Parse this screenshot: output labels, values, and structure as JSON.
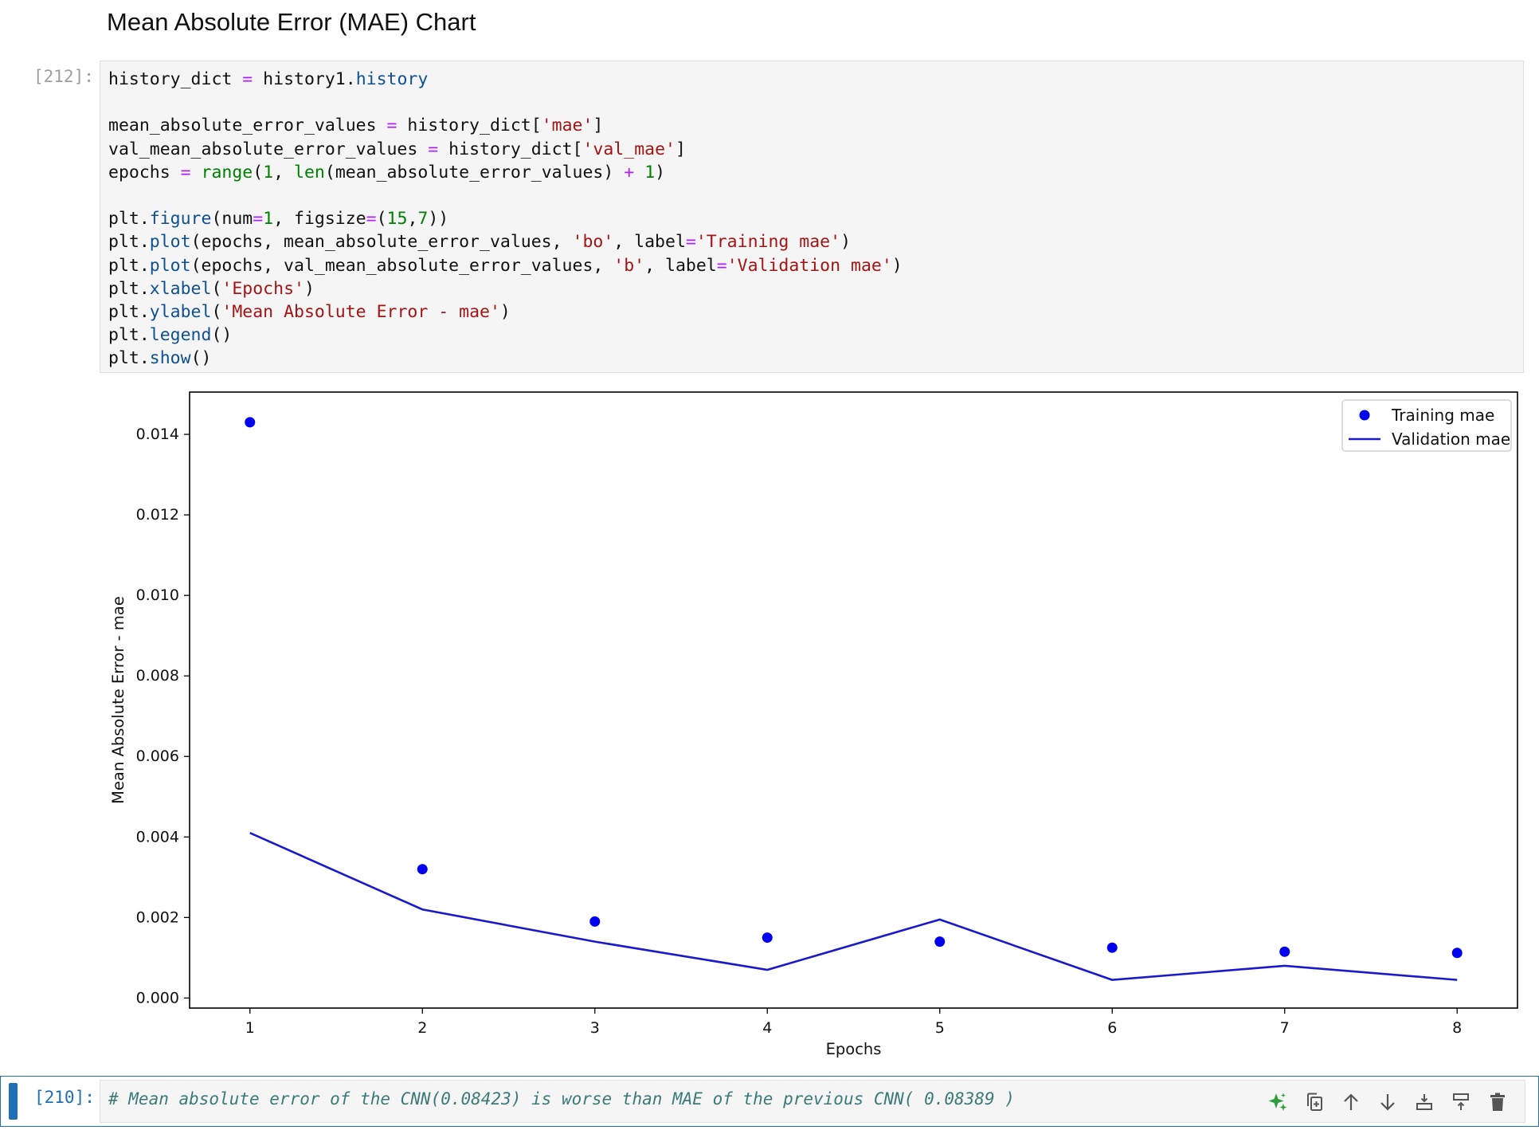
{
  "notebook": {
    "heading": "Mean Absolute Error (MAE) Chart",
    "code_cell": {
      "prompt": "[212]:",
      "lines": [
        [
          [
            "v",
            "history_dict "
          ],
          [
            "o",
            "="
          ],
          [
            "v",
            " history1."
          ],
          [
            "a",
            "history"
          ]
        ],
        [],
        [
          [
            "v",
            "mean_absolute_error_values "
          ],
          [
            "o",
            "="
          ],
          [
            "v",
            " history_dict"
          ],
          [
            "p",
            "["
          ],
          [
            "s",
            "'mae'"
          ],
          [
            "p",
            "]"
          ]
        ],
        [
          [
            "v",
            "val_mean_absolute_error_values "
          ],
          [
            "o",
            "="
          ],
          [
            "v",
            " history_dict"
          ],
          [
            "p",
            "["
          ],
          [
            "s",
            "'val_mae'"
          ],
          [
            "p",
            "]"
          ]
        ],
        [
          [
            "v",
            "epochs "
          ],
          [
            "o",
            "="
          ],
          [
            "v",
            " "
          ],
          [
            "b",
            "range"
          ],
          [
            "v",
            "("
          ],
          [
            "n",
            "1"
          ],
          [
            "v",
            ", "
          ],
          [
            "b",
            "len"
          ],
          [
            "v",
            "(mean_absolute_error_values) "
          ],
          [
            "o",
            "+"
          ],
          [
            "v",
            " "
          ],
          [
            "n",
            "1"
          ],
          [
            "v",
            ")"
          ]
        ],
        [],
        [
          [
            "v",
            "plt."
          ],
          [
            "f",
            "figure"
          ],
          [
            "v",
            "(num"
          ],
          [
            "o",
            "="
          ],
          [
            "n",
            "1"
          ],
          [
            "v",
            ", figsize"
          ],
          [
            "o",
            "="
          ],
          [
            "v",
            "("
          ],
          [
            "n",
            "15"
          ],
          [
            "v",
            ","
          ],
          [
            "n",
            "7"
          ],
          [
            "v",
            "))"
          ]
        ],
        [
          [
            "v",
            "plt."
          ],
          [
            "f",
            "plot"
          ],
          [
            "v",
            "(epochs, mean_absolute_error_values, "
          ],
          [
            "s",
            "'bo'"
          ],
          [
            "v",
            ", label"
          ],
          [
            "o",
            "="
          ],
          [
            "s",
            "'Training mae'"
          ],
          [
            "v",
            ")"
          ]
        ],
        [
          [
            "v",
            "plt."
          ],
          [
            "f",
            "plot"
          ],
          [
            "v",
            "(epochs, val_mean_absolute_error_values, "
          ],
          [
            "s",
            "'b'"
          ],
          [
            "v",
            ", label"
          ],
          [
            "o",
            "="
          ],
          [
            "s",
            "'Validation mae'"
          ],
          [
            "v",
            ")"
          ]
        ],
        [
          [
            "v",
            "plt."
          ],
          [
            "f",
            "xlabel"
          ],
          [
            "v",
            "("
          ],
          [
            "s",
            "'Epochs'"
          ],
          [
            "v",
            ")"
          ]
        ],
        [
          [
            "v",
            "plt."
          ],
          [
            "f",
            "ylabel"
          ],
          [
            "v",
            "("
          ],
          [
            "s",
            "'Mean Absolute Error - mae'"
          ],
          [
            "v",
            ")"
          ]
        ],
        [
          [
            "v",
            "plt."
          ],
          [
            "f",
            "legend"
          ],
          [
            "v",
            "()"
          ]
        ],
        [
          [
            "v",
            "plt."
          ],
          [
            "f",
            "show"
          ],
          [
            "v",
            "()"
          ]
        ]
      ]
    },
    "active_cell": {
      "prompt": "[210]:",
      "comment": "# Mean absolute error of the CNN(0.08423) is worse than MAE of the previous CNN( 0.08389 )",
      "toolbar": [
        {
          "name": "ai-sparkle",
          "icon": "sparkle-icon",
          "color": "#2e9e3e"
        },
        {
          "name": "duplicate",
          "icon": "copy-icon"
        },
        {
          "name": "move-up",
          "icon": "arrow-up-icon"
        },
        {
          "name": "move-down",
          "icon": "arrow-down-icon"
        },
        {
          "name": "insert-below",
          "icon": "insert-below-icon"
        },
        {
          "name": "insert-above",
          "icon": "insert-above-icon"
        },
        {
          "name": "delete",
          "icon": "trash-icon"
        }
      ]
    }
  },
  "chart_data": {
    "type": "line",
    "xlabel": "Epochs",
    "ylabel": "Mean Absolute Error - mae",
    "x": [
      1,
      2,
      3,
      4,
      5,
      6,
      7,
      8
    ],
    "xlim": [
      0.65,
      8.35
    ],
    "ylim": [
      -0.00025,
      0.01505
    ],
    "x_ticks": [
      "1",
      "2",
      "3",
      "4",
      "5",
      "6",
      "7",
      "8"
    ],
    "y_ticks": [
      0.0,
      0.002,
      0.004,
      0.006,
      0.008,
      0.01,
      0.012,
      0.014
    ],
    "y_tick_labels": [
      "0.000",
      "0.002",
      "0.004",
      "0.006",
      "0.008",
      "0.010",
      "0.012",
      "0.014"
    ],
    "legend_position": "top-right",
    "color": "#0000ee",
    "line_color": "#1a1acc",
    "series": [
      {
        "name": "Training mae",
        "style": "points",
        "values": [
          0.0143,
          0.0032,
          0.0019,
          0.0015,
          0.0014,
          0.00125,
          0.00115,
          0.00112
        ]
      },
      {
        "name": "Validation mae",
        "style": "line",
        "values": [
          0.0041,
          0.0022,
          0.0014,
          0.0007,
          0.00195,
          0.00045,
          0.0008,
          0.00045
        ]
      }
    ]
  }
}
